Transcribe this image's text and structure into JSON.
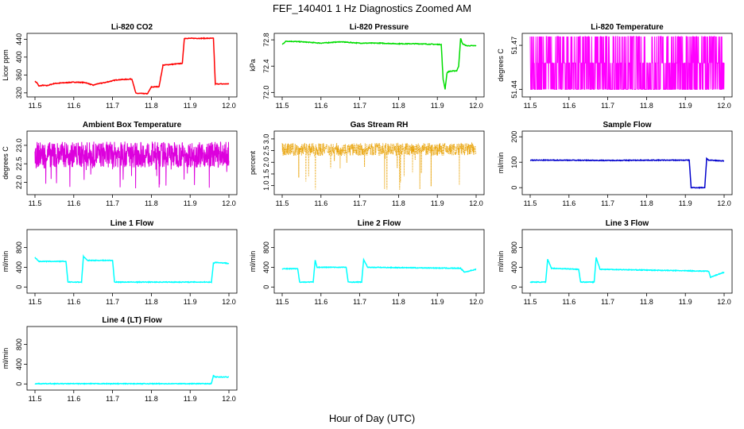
{
  "title": "FEF_140401  1 Hz Diagnostics Zoomed AM",
  "xlabel": "Hour of Day (UTC)",
  "chart_data": [
    {
      "type": "line",
      "title": "Li-820 CO2",
      "ylabel": "Licor ppm",
      "color": "#ff0000",
      "xlim": [
        11.5,
        12.0
      ],
      "ylim": [
        318,
        446
      ],
      "xticks": [
        "11.5",
        "11.6",
        "11.7",
        "11.8",
        "11.9",
        "12.0"
      ],
      "yticks": [
        "320",
        "360",
        "400",
        "440"
      ],
      "x": [
        11.5,
        11.505,
        11.51,
        11.52,
        11.53,
        11.55,
        11.6,
        11.63,
        11.65,
        11.66,
        11.68,
        11.69,
        11.7,
        11.71,
        11.73,
        11.75,
        11.76,
        11.79,
        11.8,
        11.82,
        11.83,
        11.88,
        11.885,
        11.96,
        11.965,
        12.0
      ],
      "y": [
        345,
        343,
        335,
        337,
        336,
        341,
        344,
        343,
        337,
        340,
        343,
        345,
        347,
        349,
        350,
        351,
        319,
        318,
        333,
        334,
        382,
        386,
        442,
        442,
        340,
        340
      ]
    },
    {
      "type": "line",
      "title": "Li-820 Pressure",
      "ylabel": "kPa",
      "color": "#00dd00",
      "xlim": [
        11.5,
        12.0
      ],
      "ylim": [
        71.98,
        72.85
      ],
      "xticks": [
        "11.5",
        "11.6",
        "11.7",
        "11.8",
        "11.9",
        "12.0"
      ],
      "yticks": [
        "72.0",
        "72.4",
        "72.8"
      ],
      "x": [
        11.5,
        11.51,
        11.55,
        11.6,
        11.65,
        11.7,
        11.75,
        11.8,
        11.85,
        11.9,
        11.91,
        11.915,
        11.92,
        11.925,
        11.93,
        11.95,
        11.955,
        11.96,
        11.965,
        11.975,
        12.0
      ],
      "y": [
        72.73,
        72.78,
        72.77,
        72.75,
        72.77,
        72.75,
        72.75,
        72.74,
        72.74,
        72.73,
        72.73,
        72.2,
        72.05,
        72.3,
        72.32,
        72.33,
        72.4,
        72.82,
        72.74,
        72.71,
        72.71
      ]
    },
    {
      "type": "line",
      "title": "Li-820 Temperature",
      "ylabel": "degrees C",
      "color": "#ff00ff",
      "xlim": [
        11.5,
        12.0
      ],
      "ylim": [
        51.437,
        51.476
      ],
      "xticks": [
        "11.5",
        "11.6",
        "11.7",
        "11.8",
        "11.9",
        "12.0"
      ],
      "yticks": [
        "51.44",
        "51.47"
      ],
      "levels": [
        51.44,
        51.458,
        51.476
      ]
    },
    {
      "type": "line",
      "title": "Ambient Box Temperature",
      "ylabel": "degrees C",
      "color": "#dd00dd",
      "xlim": [
        11.5,
        12.0
      ],
      "ylim": [
        21.75,
        23.3
      ],
      "xticks": [
        "11.5",
        "11.6",
        "11.7",
        "11.8",
        "11.9",
        "12.0"
      ],
      "yticks": [
        "22.0",
        "22.5",
        "23.0"
      ],
      "y_mean": 22.75,
      "y_range": [
        21.8,
        23.25
      ]
    },
    {
      "type": "scatter",
      "title": "Gas Stream RH",
      "ylabel": "percent",
      "color": "#e8a000",
      "xlim": [
        11.5,
        12.0
      ],
      "ylim": [
        0.75,
        3.2
      ],
      "xticks": [
        "11.5",
        "11.6",
        "11.7",
        "11.8",
        "11.9",
        "12.0"
      ],
      "yticks": [
        "1.0",
        "1.5",
        "2.0",
        "2.5",
        "3.0"
      ],
      "y_mean": 2.55,
      "y_range": [
        0.8,
        3.0
      ]
    },
    {
      "type": "line",
      "title": "Sample Flow",
      "ylabel": "ml/min",
      "color": "#0000cc",
      "xlim": [
        11.5,
        12.0
      ],
      "ylim": [
        -15,
        210
      ],
      "xticks": [
        "11.5",
        "11.6",
        "11.7",
        "11.8",
        "11.9",
        "12.0"
      ],
      "yticks": [
        "0",
        "100",
        "200"
      ],
      "x": [
        11.5,
        11.6,
        11.7,
        11.8,
        11.91,
        11.915,
        11.95,
        11.955,
        11.96,
        12.0
      ],
      "y": [
        108,
        108,
        107,
        108,
        108,
        0,
        0,
        115,
        108,
        105
      ]
    },
    {
      "type": "line",
      "title": "Line 1 Flow",
      "ylabel": "ml/min",
      "color": "#00ffff",
      "xlim": [
        11.5,
        12.0
      ],
      "ylim": [
        -60,
        1100
      ],
      "xticks": [
        "11.5",
        "11.6",
        "11.7",
        "11.8",
        "11.9",
        "12.0"
      ],
      "yticks": [
        "0",
        "400",
        "800"
      ],
      "x": [
        11.5,
        11.51,
        11.58,
        11.585,
        11.62,
        11.625,
        11.635,
        11.7,
        11.705,
        11.955,
        11.96,
        11.965,
        12.0
      ],
      "y": [
        600,
        520,
        520,
        100,
        100,
        620,
        540,
        540,
        100,
        100,
        480,
        500,
        480
      ]
    },
    {
      "type": "line",
      "title": "Line 2 Flow",
      "ylabel": "ml/min",
      "color": "#00ffff",
      "xlim": [
        11.5,
        12.0
      ],
      "ylim": [
        -60,
        1100
      ],
      "xticks": [
        "11.5",
        "11.6",
        "11.7",
        "11.8",
        "11.9",
        "12.0"
      ],
      "yticks": [
        "0",
        "400",
        "800"
      ],
      "x": [
        11.5,
        11.54,
        11.545,
        11.58,
        11.585,
        11.59,
        11.665,
        11.67,
        11.705,
        11.71,
        11.72,
        11.96,
        11.97,
        12.0
      ],
      "y": [
        370,
        370,
        100,
        100,
        540,
        400,
        400,
        100,
        100,
        560,
        400,
        380,
        300,
        360
      ]
    },
    {
      "type": "line",
      "title": "Line 3 Flow",
      "ylabel": "ml/min",
      "color": "#00ffff",
      "xlim": [
        11.5,
        12.0
      ],
      "ylim": [
        -60,
        1100
      ],
      "xticks": [
        "11.5",
        "11.6",
        "11.7",
        "11.8",
        "11.9",
        "12.0"
      ],
      "yticks": [
        "0",
        "400",
        "800"
      ],
      "x": [
        11.5,
        11.54,
        11.545,
        11.555,
        11.625,
        11.63,
        11.665,
        11.67,
        11.68,
        11.9,
        11.96,
        11.965,
        12.0
      ],
      "y": [
        100,
        100,
        560,
        380,
        360,
        100,
        100,
        600,
        360,
        330,
        320,
        200,
        300
      ]
    },
    {
      "type": "line",
      "title": "Line 4 (LT) Flow",
      "ylabel": "ml/min",
      "color": "#00ffff",
      "xlim": [
        11.5,
        12.0
      ],
      "ylim": [
        -60,
        1100
      ],
      "xticks": [
        "11.5",
        "11.6",
        "11.7",
        "11.8",
        "11.9",
        "12.0"
      ],
      "yticks": [
        "0",
        "400",
        "800"
      ],
      "x": [
        11.5,
        11.955,
        11.96,
        11.965,
        12.0
      ],
      "y": [
        5,
        5,
        170,
        140,
        140
      ]
    }
  ]
}
